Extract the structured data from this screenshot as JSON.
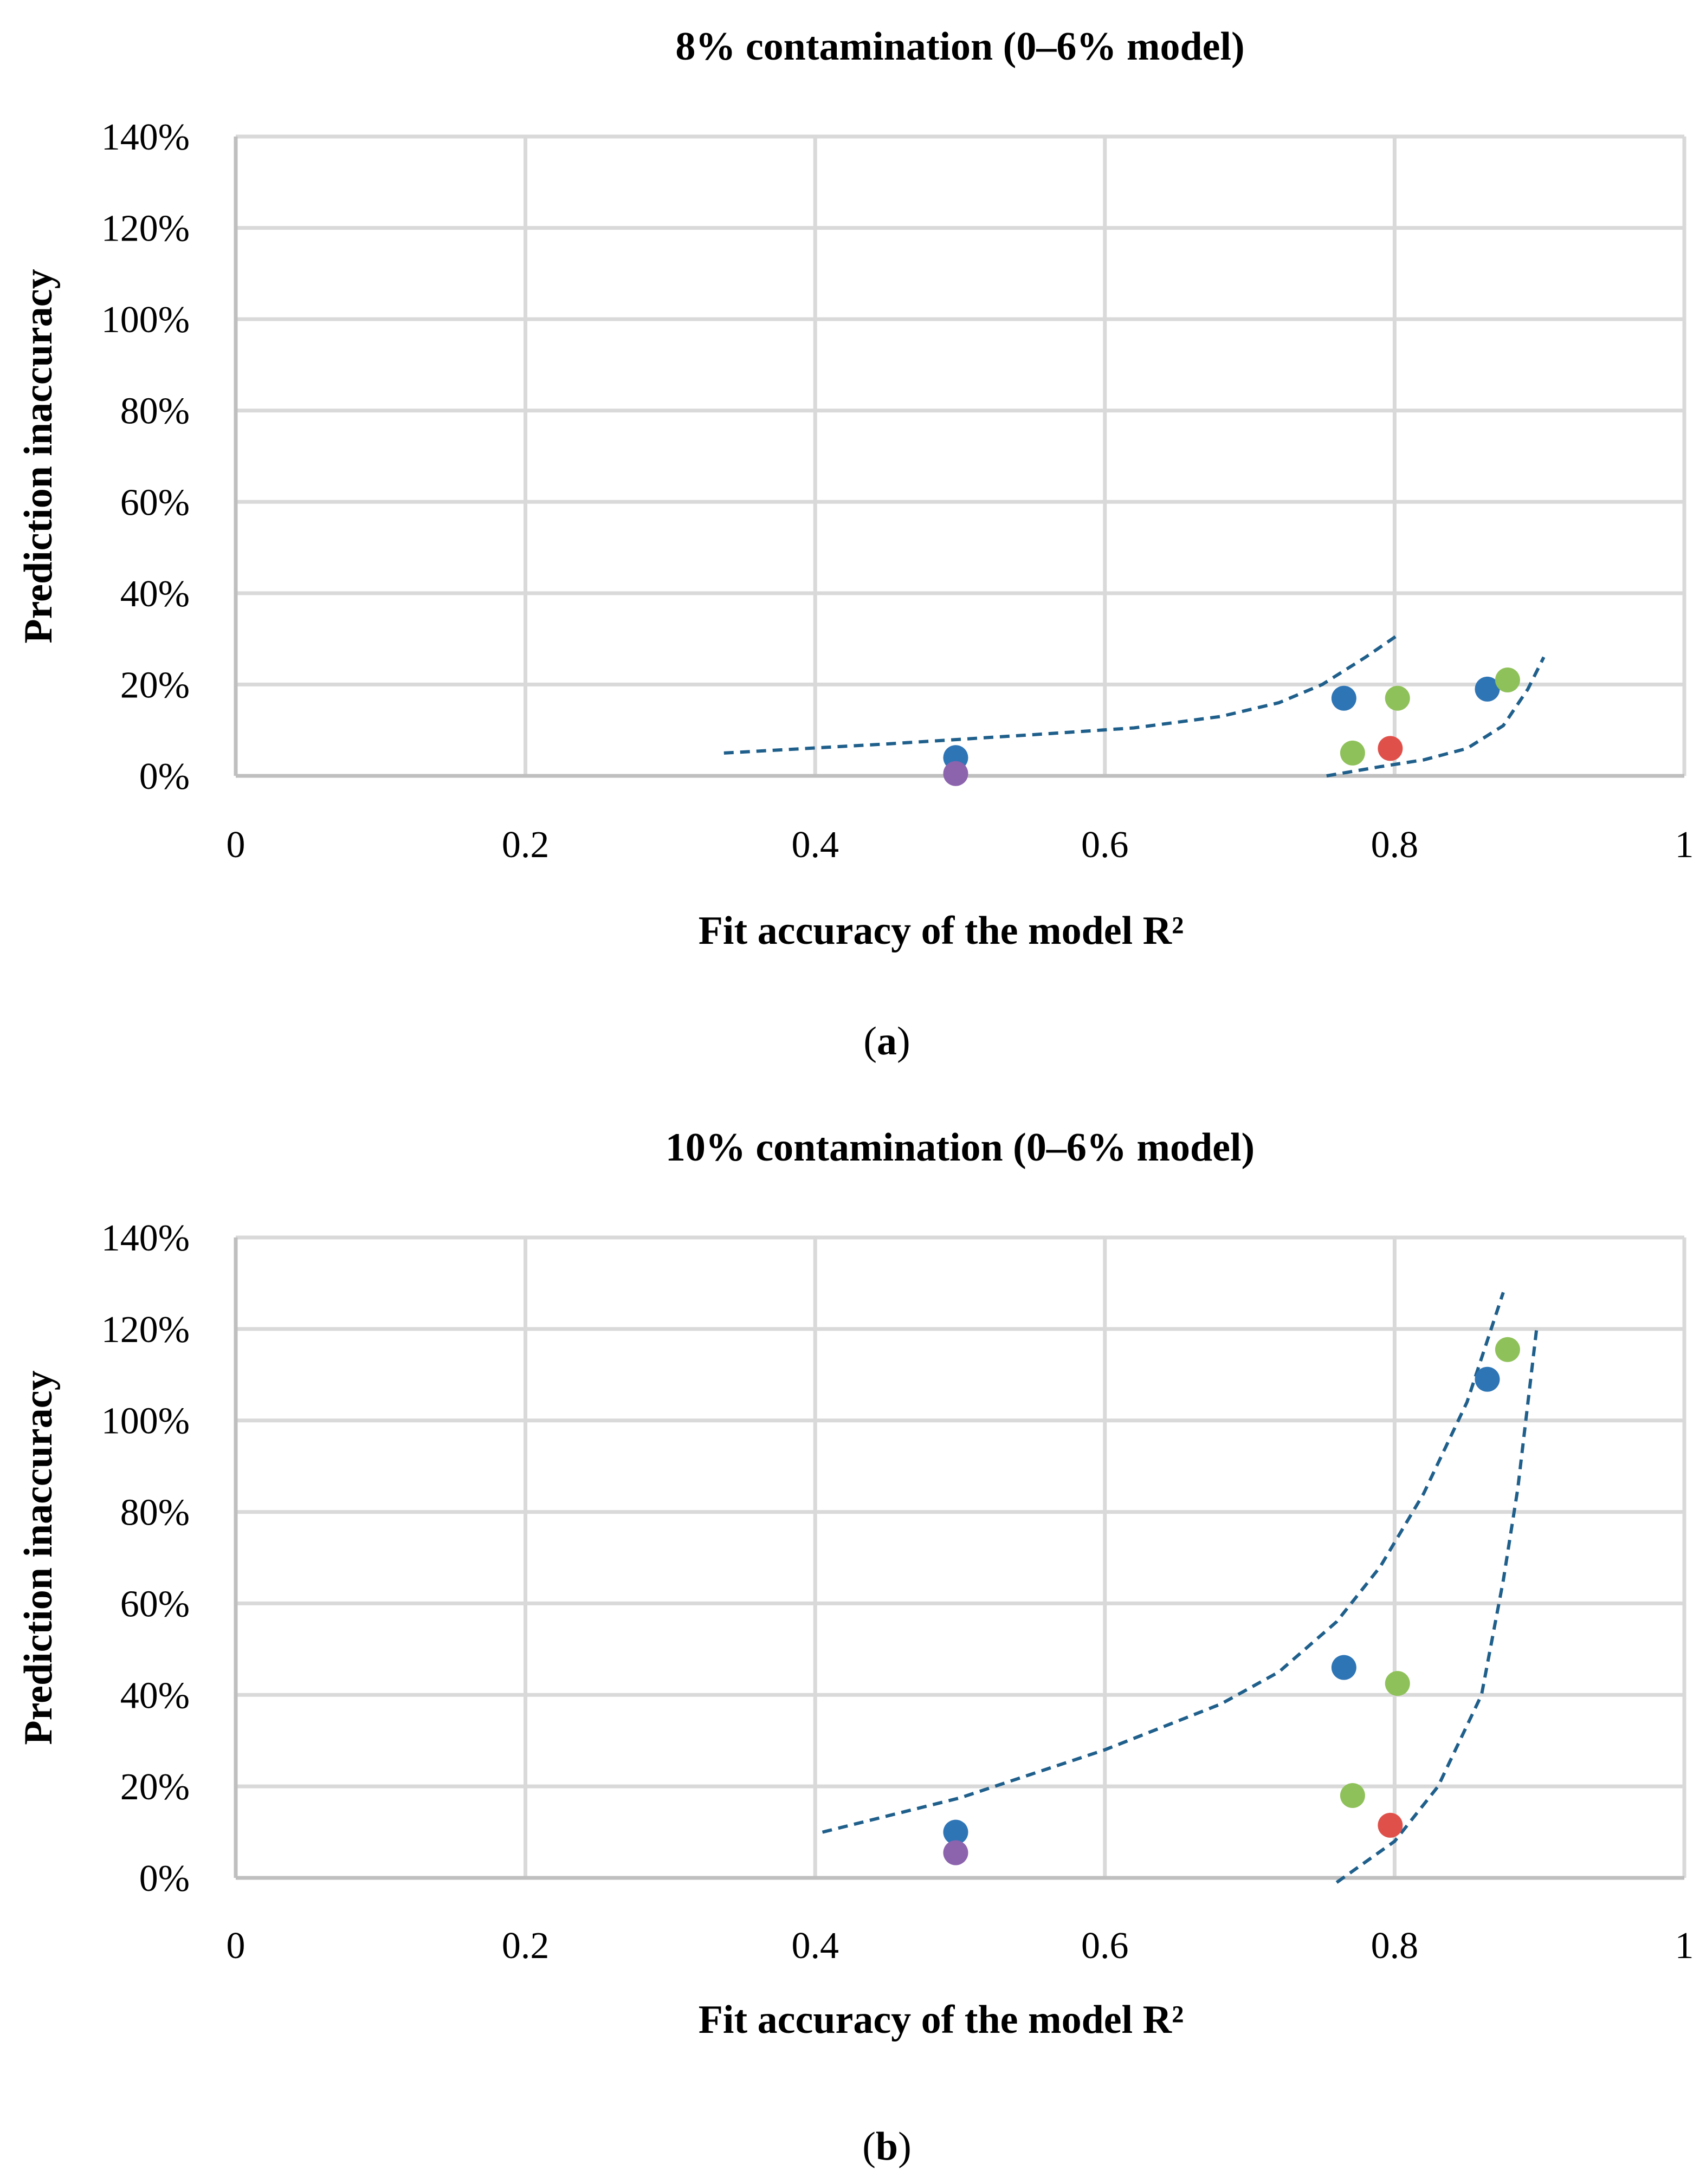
{
  "chart_data": [
    {
      "type": "scatter",
      "title": "8% contamination (0–6% model)",
      "xlabel": "Fit accuracy of the model R²",
      "ylabel": "Prediction inaccuracy",
      "caption_letter": "a",
      "xlim": [
        0,
        1
      ],
      "ylim": [
        0,
        1.4
      ],
      "x_ticks": [
        "0",
        "0.2",
        "0.4",
        "0.6",
        "0.8",
        "1"
      ],
      "y_ticks": [
        "0%",
        "20%",
        "40%",
        "60%",
        "80%",
        "100%",
        "120%",
        "140%"
      ],
      "grid": true,
      "series": [
        {
          "name": "blue",
          "color": "#2e75b6",
          "points": [
            [
              0.497,
              0.04
            ],
            [
              0.765,
              0.17
            ],
            [
              0.864,
              0.19
            ]
          ]
        },
        {
          "name": "green",
          "color": "#8fc15a",
          "points": [
            [
              0.771,
              0.05
            ],
            [
              0.802,
              0.17
            ],
            [
              0.878,
              0.21
            ]
          ]
        },
        {
          "name": "red",
          "color": "#e0504a",
          "points": [
            [
              0.797,
              0.06
            ]
          ]
        },
        {
          "name": "purple",
          "color": "#8c63ad",
          "points": [
            [
              0.497,
              0.005
            ]
          ]
        }
      ],
      "trendlines": [
        {
          "name": "upper bound",
          "color": "#1f5f8b",
          "points": [
            [
              0.337,
              0.05
            ],
            [
              0.45,
              0.07
            ],
            [
              0.55,
              0.09
            ],
            [
              0.62,
              0.105
            ],
            [
              0.68,
              0.13
            ],
            [
              0.72,
              0.16
            ],
            [
              0.75,
              0.2
            ],
            [
              0.78,
              0.26
            ],
            [
              0.803,
              0.31
            ]
          ]
        },
        {
          "name": "lower bound",
          "color": "#1f5f8b",
          "points": [
            [
              0.753,
              0.0
            ],
            [
              0.79,
              0.02
            ],
            [
              0.82,
              0.035
            ],
            [
              0.85,
              0.06
            ],
            [
              0.875,
              0.11
            ],
            [
              0.892,
              0.19
            ],
            [
              0.903,
              0.26
            ]
          ]
        }
      ]
    },
    {
      "type": "scatter",
      "title": "10% contamination (0–6% model)",
      "xlabel": "Fit accuracy of the model R²",
      "ylabel": "Prediction inaccuracy",
      "caption_letter": "b",
      "xlim": [
        0,
        1
      ],
      "ylim": [
        0,
        1.4
      ],
      "x_ticks": [
        "0",
        "0.2",
        "0.4",
        "0.6",
        "0.8",
        "1"
      ],
      "y_ticks": [
        "0%",
        "20%",
        "40%",
        "60%",
        "80%",
        "100%",
        "120%",
        "140%"
      ],
      "grid": true,
      "series": [
        {
          "name": "blue",
          "color": "#2e75b6",
          "points": [
            [
              0.497,
              0.1
            ],
            [
              0.765,
              0.46
            ],
            [
              0.864,
              1.09
            ]
          ]
        },
        {
          "name": "green",
          "color": "#8fc15a",
          "points": [
            [
              0.771,
              0.18
            ],
            [
              0.802,
              0.425
            ],
            [
              0.878,
              1.155
            ]
          ]
        },
        {
          "name": "red",
          "color": "#e0504a",
          "points": [
            [
              0.797,
              0.115
            ]
          ]
        },
        {
          "name": "purple",
          "color": "#8c63ad",
          "points": [
            [
              0.497,
              0.055
            ]
          ]
        }
      ],
      "trendlines": [
        {
          "name": "upper bound",
          "color": "#1f5f8b",
          "points": [
            [
              0.405,
              0.1
            ],
            [
              0.5,
              0.175
            ],
            [
              0.6,
              0.28
            ],
            [
              0.68,
              0.38
            ],
            [
              0.72,
              0.45
            ],
            [
              0.76,
              0.56
            ],
            [
              0.79,
              0.68
            ],
            [
              0.82,
              0.84
            ],
            [
              0.85,
              1.04
            ],
            [
              0.875,
              1.28
            ]
          ]
        },
        {
          "name": "lower bound",
          "color": "#1f5f8b",
          "points": [
            [
              0.76,
              -0.01
            ],
            [
              0.8,
              0.08
            ],
            [
              0.83,
              0.2
            ],
            [
              0.86,
              0.4
            ],
            [
              0.875,
              0.65
            ],
            [
              0.885,
              0.85
            ],
            [
              0.898,
              1.2
            ]
          ]
        }
      ]
    }
  ]
}
